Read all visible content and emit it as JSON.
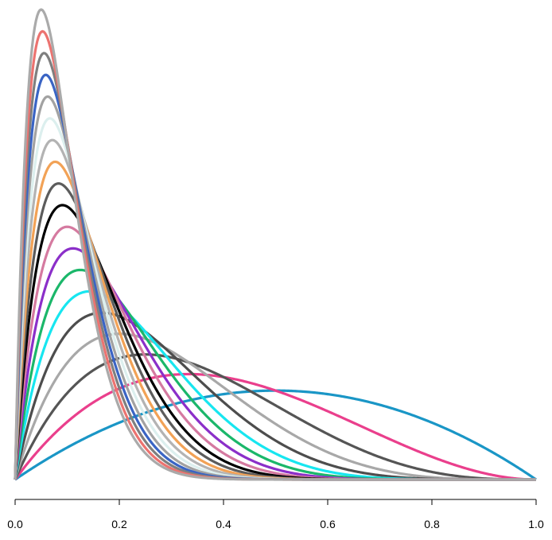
{
  "chart_data": {
    "type": "line",
    "title": "",
    "xlabel": "",
    "ylabel": "",
    "xlim": [
      0.0,
      1.0
    ],
    "x_ticks": [
      0.0,
      0.2,
      0.4,
      0.6,
      0.8,
      1.0
    ],
    "x_tick_labels": [
      "0.0",
      "0.2",
      "0.4",
      "0.6",
      "0.8",
      "1.0"
    ],
    "y_axis_shown": false,
    "grid": false,
    "legend": "none",
    "curve_family": "beta_pdf",
    "series": [
      {
        "alpha": 2,
        "beta": 2,
        "color": "#1a96c6"
      },
      {
        "alpha": 2,
        "beta": 3,
        "color": "#ea3f8c"
      },
      {
        "alpha": 2,
        "beta": 4,
        "color": "#555555"
      },
      {
        "alpha": 2,
        "beta": 5,
        "color": "#a8a8a8"
      },
      {
        "alpha": 2,
        "beta": 6,
        "color": "#4d4d4d"
      },
      {
        "alpha": 2,
        "beta": 7,
        "color": "#17e6f0"
      },
      {
        "alpha": 2,
        "beta": 8,
        "color": "#1bb76a"
      },
      {
        "alpha": 2,
        "beta": 9,
        "color": "#8b2fc9"
      },
      {
        "alpha": 2,
        "beta": 10,
        "color": "#d57aa0"
      },
      {
        "alpha": 2,
        "beta": 11,
        "color": "#000000"
      },
      {
        "alpha": 2,
        "beta": 12,
        "color": "#5c5c5c"
      },
      {
        "alpha": 2,
        "beta": 13,
        "color": "#f2a256"
      },
      {
        "alpha": 2,
        "beta": 14,
        "color": "#b3b3b3"
      },
      {
        "alpha": 2,
        "beta": 15,
        "color": "#dcefee"
      },
      {
        "alpha": 2,
        "beta": 16,
        "color": "#a2a2a2"
      },
      {
        "alpha": 2,
        "beta": 17,
        "color": "#3a64c4"
      },
      {
        "alpha": 2,
        "beta": 18,
        "color": "#7f7f7f"
      },
      {
        "alpha": 2,
        "beta": 19,
        "color": "#ec7370"
      },
      {
        "alpha": 2,
        "beta": 20,
        "color": "#aaaaaa"
      }
    ]
  }
}
